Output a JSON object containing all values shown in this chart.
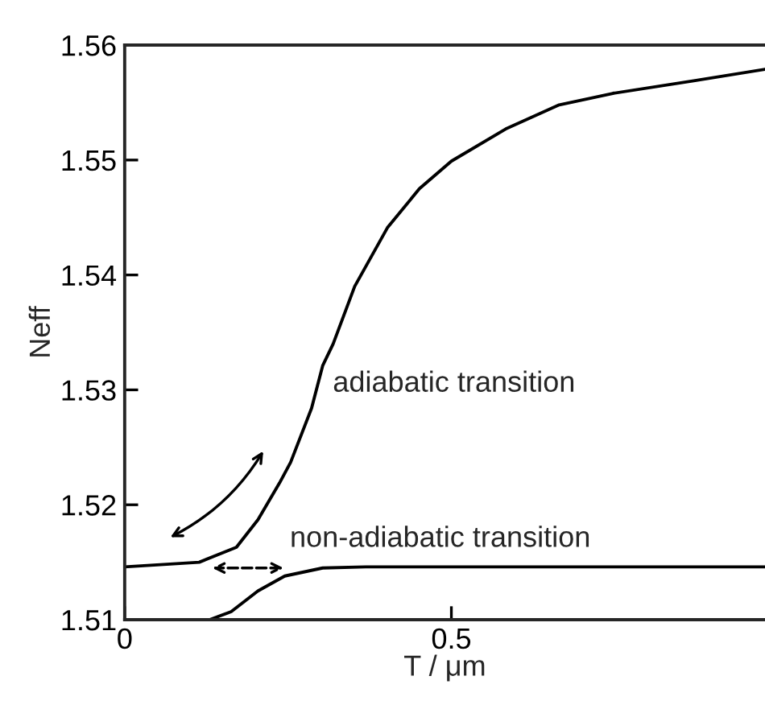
{
  "chart_data": {
    "type": "line",
    "xlabel": "T / μm",
    "ylabel": "Neff",
    "xlim": [
      0,
      0.98
    ],
    "ylim": [
      1.51,
      1.56
    ],
    "xticks": [
      0,
      0.5
    ],
    "yticks": [
      1.51,
      1.52,
      1.53,
      1.54,
      1.55,
      1.56
    ],
    "grid": false,
    "legend": false,
    "marker": "none",
    "line_style": "solid",
    "series": [
      {
        "color": "#000000",
        "x": [
          0,
          0.114,
          0.171,
          0.204,
          0.237,
          0.254,
          0.286,
          0.303,
          0.319,
          0.352,
          0.402,
          0.451,
          0.5,
          0.583,
          0.665,
          0.747,
          0.871,
          0.98
        ],
        "values": [
          1.5146,
          1.515,
          1.5163,
          1.5187,
          1.5219,
          1.5237,
          1.5284,
          1.5321,
          1.534,
          1.539,
          1.5441,
          1.5475,
          1.5499,
          1.5527,
          1.5548,
          1.5558,
          1.5569,
          1.5579
        ]
      },
      {
        "color": "#000000",
        "x": [
          0.13,
          0.163,
          0.204,
          0.245,
          0.303,
          0.369,
          0.5,
          0.98
        ],
        "values": [
          1.51,
          1.5107,
          1.5125,
          1.5138,
          1.5145,
          1.5146,
          1.5146,
          1.5146
        ]
      }
    ],
    "annotations": [
      "adiabatic transition",
      "non-adiabatic transition"
    ]
  }
}
